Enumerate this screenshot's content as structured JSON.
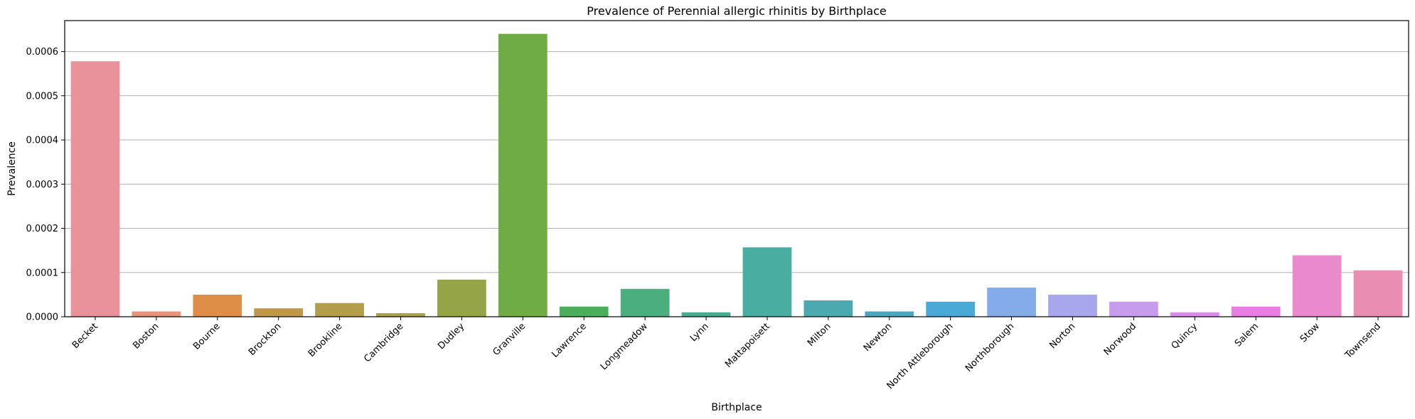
{
  "chart_data": {
    "type": "bar",
    "title": "Prevalence of Perennial allergic rhinitis by Birthplace",
    "xlabel": "Birthplace",
    "ylabel": "Prevalence",
    "ylim": [
      0,
      0.00067
    ],
    "yticks": [
      "0.0000",
      "0.0001",
      "0.0002",
      "0.0003",
      "0.0004",
      "0.0005",
      "0.0006"
    ],
    "grid": "horizontal",
    "categories": [
      "Becket",
      "Boston",
      "Bourne",
      "Brockton",
      "Brookline",
      "Cambridge",
      "Dudley",
      "Granville",
      "Lawrence",
      "Longmeadow",
      "Lynn",
      "Mattapoisett",
      "Milton",
      "Newton",
      "North Attleborough",
      "Northborough",
      "Norton",
      "Norwood",
      "Quincy",
      "Salem",
      "Stow",
      "Townsend"
    ],
    "values": [
      0.000578,
      1.2e-05,
      5e-05,
      1.9e-05,
      3.1e-05,
      8e-06,
      8.4e-05,
      0.00064,
      2.3e-05,
      6.3e-05,
      1e-05,
      0.000157,
      3.7e-05,
      1.2e-05,
      3.4e-05,
      6.6e-05,
      5e-05,
      3.4e-05,
      1e-05,
      2.3e-05,
      0.000139,
      0.000105
    ],
    "colors": [
      "#E8939C",
      "#E8937A",
      "#DE8E46",
      "#C0964A",
      "#B39E4B",
      "#A9A04A",
      "#94A446",
      "#70AC46",
      "#4AAE5A",
      "#4BAE7E",
      "#4AAB92",
      "#4AADA2",
      "#4BAAB0",
      "#4AA8C0",
      "#4AA9D7",
      "#83ACE8",
      "#A8A6EC",
      "#C79CEC",
      "#D78EEB",
      "#E87EE2",
      "#E88ACB",
      "#E88EB3"
    ]
  }
}
